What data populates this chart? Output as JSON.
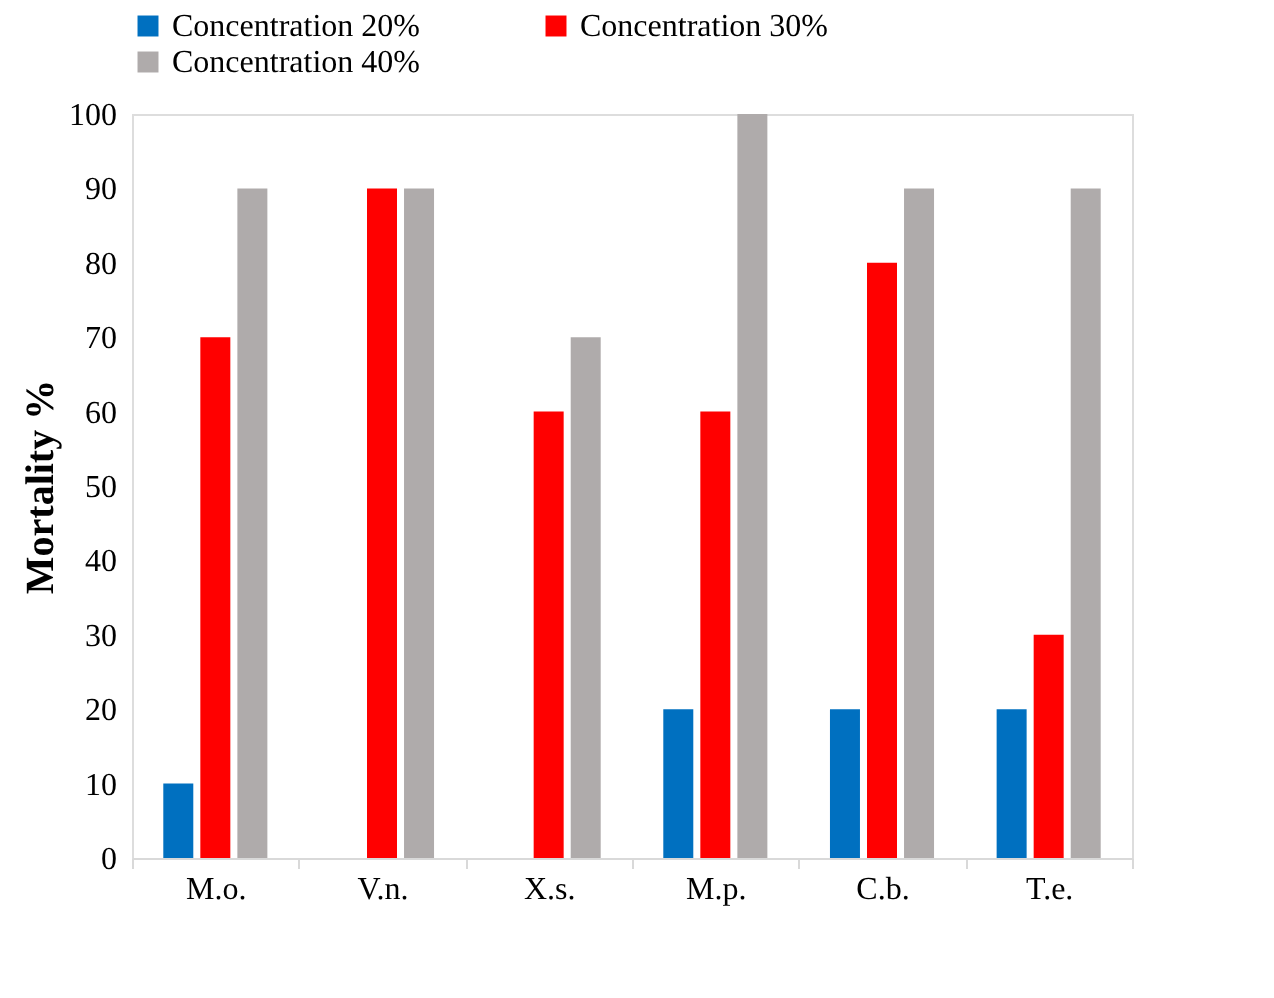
{
  "chart_data": {
    "type": "bar",
    "ylabel": "Mortality %",
    "categories": [
      "M.o.",
      "V.n.",
      "X.s.",
      "M.p.",
      "C.b.",
      "T.e."
    ],
    "series": [
      {
        "name": "Concentration 20%",
        "color": "#0070c0",
        "values": [
          10,
          0,
          0,
          20,
          20,
          20
        ]
      },
      {
        "name": "Concentration 30%",
        "color": "#ff0000",
        "values": [
          70,
          90,
          60,
          60,
          80,
          30
        ]
      },
      {
        "name": "Concentration 40%",
        "color": "#afabab",
        "values": [
          90,
          90,
          70,
          100,
          90,
          90
        ]
      }
    ],
    "ylim": [
      0,
      100
    ],
    "yticks": [
      0,
      10,
      20,
      30,
      40,
      50,
      60,
      70,
      80,
      90,
      100
    ],
    "grid": false,
    "legend": "top"
  }
}
